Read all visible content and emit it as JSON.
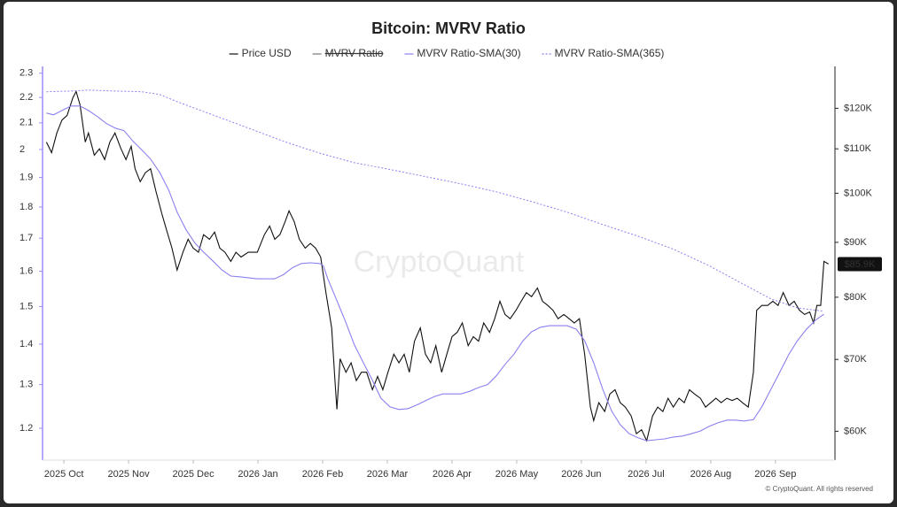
{
  "chart_data": {
    "type": "line",
    "title": "Bitcoin: MVRV Ratio",
    "watermark": "CryptoQuant",
    "copyright": "© CryptoQuant. All rights reserved",
    "log_scale": true,
    "grid": false,
    "legend_position": "top",
    "xlim": [
      -0.33,
      11.92
    ],
    "xticks": [
      {
        "value": 0,
        "label": "2025 Oct"
      },
      {
        "value": 1,
        "label": "2025 Nov"
      },
      {
        "value": 2,
        "label": "2025 Dec"
      },
      {
        "value": 3,
        "label": "2026 Jan"
      },
      {
        "value": 4,
        "label": "2026 Feb"
      },
      {
        "value": 5,
        "label": "2026 Mar"
      },
      {
        "value": 6,
        "label": "2026 Apr"
      },
      {
        "value": 7,
        "label": "2026 May"
      },
      {
        "value": 8,
        "label": "2026 Jun"
      },
      {
        "value": 9,
        "label": "2026 Jul"
      },
      {
        "value": 10,
        "label": "2026 Aug"
      },
      {
        "value": 11,
        "label": "2026 Sep"
      }
    ],
    "ylim": [
      1.132,
      2.329
    ],
    "yticks": [
      2.3,
      2.2,
      2.1,
      2,
      1.9,
      1.8,
      1.7,
      1.6,
      1.5,
      1.4,
      1.3,
      1.2
    ],
    "y2lim": [
      56400,
      131300
    ],
    "y2ticks": [
      {
        "value": 120000,
        "label": "$120K"
      },
      {
        "value": 110000,
        "label": "$110K"
      },
      {
        "value": 100000,
        "label": "$100K"
      },
      {
        "value": 90000,
        "label": "$90K"
      },
      {
        "value": 80000,
        "label": "$80K"
      },
      {
        "value": 70000,
        "label": "$70K"
      },
      {
        "value": 60000,
        "label": "$60K"
      }
    ],
    "series": [
      {
        "name": "Price USD",
        "color": "#111111",
        "axis": "y2",
        "style": "solid",
        "end_label": "$85.9K",
        "x": [
          -0.27,
          -0.19,
          -0.11,
          -0.03,
          0.05,
          0.14,
          0.19,
          0.25,
          0.33,
          0.38,
          0.47,
          0.55,
          0.63,
          0.71,
          0.79,
          0.88,
          0.96,
          1.04,
          1.1,
          1.18,
          1.26,
          1.34,
          1.42,
          1.51,
          1.59,
          1.67,
          1.75,
          1.84,
          1.92,
          2.0,
          2.08,
          2.16,
          2.25,
          2.33,
          2.41,
          2.49,
          2.58,
          2.66,
          2.74,
          2.85,
          2.99,
          3.1,
          3.18,
          3.26,
          3.34,
          3.42,
          3.48,
          3.56,
          3.64,
          3.73,
          3.81,
          3.89,
          3.97,
          4.05,
          4.14,
          4.19,
          4.22,
          4.27,
          4.36,
          4.44,
          4.52,
          4.6,
          4.68,
          4.77,
          4.85,
          4.93,
          5.01,
          5.1,
          5.18,
          5.26,
          5.34,
          5.42,
          5.51,
          5.59,
          5.67,
          5.75,
          5.84,
          5.92,
          6.0,
          6.08,
          6.16,
          6.25,
          6.33,
          6.41,
          6.49,
          6.58,
          6.66,
          6.74,
          6.82,
          6.9,
          6.99,
          7.07,
          7.15,
          7.23,
          7.32,
          7.4,
          7.48,
          7.56,
          7.64,
          7.73,
          7.81,
          7.89,
          7.97,
          8.05,
          8.14,
          8.19,
          8.27,
          8.36,
          8.44,
          8.52,
          8.6,
          8.68,
          8.77,
          8.85,
          8.93,
          9.01,
          9.1,
          9.18,
          9.26,
          9.34,
          9.42,
          9.51,
          9.59,
          9.67,
          9.75,
          9.84,
          9.92,
          10.0,
          10.08,
          10.16,
          10.25,
          10.33,
          10.41,
          10.49,
          10.58,
          10.66,
          10.71,
          10.79,
          10.88,
          10.96,
          11.04,
          11.12,
          11.21,
          11.29,
          11.37,
          11.45,
          11.53,
          11.59,
          11.64,
          11.7,
          11.75,
          11.82
        ],
        "values": [
          111600,
          109100,
          113800,
          117000,
          118200,
          122800,
          124400,
          120900,
          111600,
          113800,
          108500,
          110000,
          107500,
          111600,
          113800,
          110100,
          107500,
          110600,
          105400,
          102500,
          104500,
          105400,
          100600,
          95900,
          92300,
          88900,
          84800,
          88100,
          90600,
          88900,
          88100,
          91500,
          90600,
          92000,
          88900,
          88100,
          86400,
          88100,
          87200,
          88100,
          88100,
          91500,
          93200,
          90600,
          91500,
          94100,
          96300,
          94100,
          90600,
          88900,
          89800,
          88900,
          87200,
          80800,
          74900,
          66900,
          62900,
          70100,
          68100,
          69500,
          66900,
          68100,
          68100,
          65600,
          67500,
          65600,
          68100,
          70800,
          69500,
          70800,
          68100,
          72800,
          74900,
          70800,
          69500,
          72100,
          68100,
          70800,
          73500,
          74200,
          75700,
          72100,
          73500,
          72800,
          75700,
          74200,
          76400,
          79300,
          77100,
          76400,
          77800,
          79300,
          80800,
          80100,
          81600,
          79300,
          78600,
          77800,
          76400,
          77100,
          76400,
          75700,
          76400,
          70800,
          63200,
          61400,
          63800,
          62600,
          65000,
          65600,
          63800,
          63200,
          62000,
          59700,
          60200,
          58800,
          62000,
          63200,
          62600,
          64400,
          63200,
          64400,
          63800,
          65600,
          65000,
          64400,
          63200,
          63800,
          64400,
          63800,
          64400,
          64100,
          64400,
          63800,
          63200,
          68100,
          77800,
          78600,
          78600,
          79300,
          78600,
          80800,
          78600,
          79300,
          77800,
          77100,
          77500,
          75700,
          78600,
          78600,
          86400,
          85900
        ]
      },
      {
        "name": "MVRV Ratio",
        "color": "#777777",
        "hidden": true
      },
      {
        "name": "MVRV Ratio-SMA(30)",
        "color": "#8b80f0",
        "style": "solid",
        "x": [
          -0.27,
          -0.16,
          -0.03,
          0.11,
          0.25,
          0.38,
          0.52,
          0.66,
          0.79,
          0.93,
          1.07,
          1.21,
          1.34,
          1.48,
          1.62,
          1.75,
          1.89,
          2.03,
          2.16,
          2.3,
          2.44,
          2.58,
          2.71,
          2.85,
          2.99,
          3.12,
          3.26,
          3.4,
          3.53,
          3.67,
          3.81,
          3.95,
          4.01,
          4.08,
          4.22,
          4.36,
          4.49,
          4.63,
          4.77,
          4.9,
          5.04,
          5.18,
          5.32,
          5.45,
          5.59,
          5.73,
          5.86,
          6.0,
          6.14,
          6.27,
          6.41,
          6.55,
          6.68,
          6.82,
          6.96,
          7.1,
          7.23,
          7.37,
          7.51,
          7.64,
          7.78,
          7.92,
          8.05,
          8.19,
          8.33,
          8.47,
          8.6,
          8.74,
          8.88,
          9.01,
          9.15,
          9.29,
          9.42,
          9.56,
          9.7,
          9.84,
          9.97,
          10.11,
          10.25,
          10.38,
          10.52,
          10.66,
          10.79,
          10.93,
          11.07,
          11.21,
          11.34,
          11.48,
          11.62,
          11.75
        ],
        "values": [
          2.138,
          2.131,
          2.148,
          2.166,
          2.166,
          2.148,
          2.124,
          2.097,
          2.08,
          2.07,
          2.03,
          1.997,
          1.965,
          1.918,
          1.857,
          1.783,
          1.726,
          1.684,
          1.657,
          1.631,
          1.604,
          1.586,
          1.584,
          1.581,
          1.578,
          1.578,
          1.578,
          1.591,
          1.61,
          1.623,
          1.625,
          1.623,
          1.617,
          1.578,
          1.516,
          1.456,
          1.398,
          1.353,
          1.31,
          1.268,
          1.248,
          1.242,
          1.244,
          1.252,
          1.262,
          1.272,
          1.278,
          1.278,
          1.278,
          1.284,
          1.293,
          1.3,
          1.32,
          1.349,
          1.375,
          1.409,
          1.432,
          1.444,
          1.448,
          1.448,
          1.448,
          1.439,
          1.409,
          1.353,
          1.289,
          1.238,
          1.208,
          1.188,
          1.179,
          1.173,
          1.175,
          1.177,
          1.181,
          1.183,
          1.188,
          1.194,
          1.204,
          1.212,
          1.218,
          1.218,
          1.216,
          1.219,
          1.248,
          1.289,
          1.331,
          1.375,
          1.409,
          1.439,
          1.463,
          1.479
        ]
      },
      {
        "name": "MVRV Ratio-SMA(365)",
        "color": "#8b80f0",
        "style": "dotted",
        "x": [
          -0.27,
          0.11,
          0.38,
          0.79,
          1.21,
          1.48,
          1.75,
          2.3,
          2.85,
          3.4,
          3.95,
          4.49,
          5.04,
          5.59,
          6.14,
          6.68,
          7.23,
          7.78,
          8.33,
          8.88,
          9.42,
          9.97,
          10.52,
          10.93,
          11.34,
          11.75
        ],
        "values": [
          2.223,
          2.226,
          2.23,
          2.226,
          2.223,
          2.212,
          2.183,
          2.131,
          2.08,
          2.03,
          1.987,
          1.952,
          1.928,
          1.903,
          1.878,
          1.851,
          1.818,
          1.783,
          1.743,
          1.706,
          1.666,
          1.617,
          1.561,
          1.521,
          1.496,
          1.487
        ]
      }
    ]
  }
}
